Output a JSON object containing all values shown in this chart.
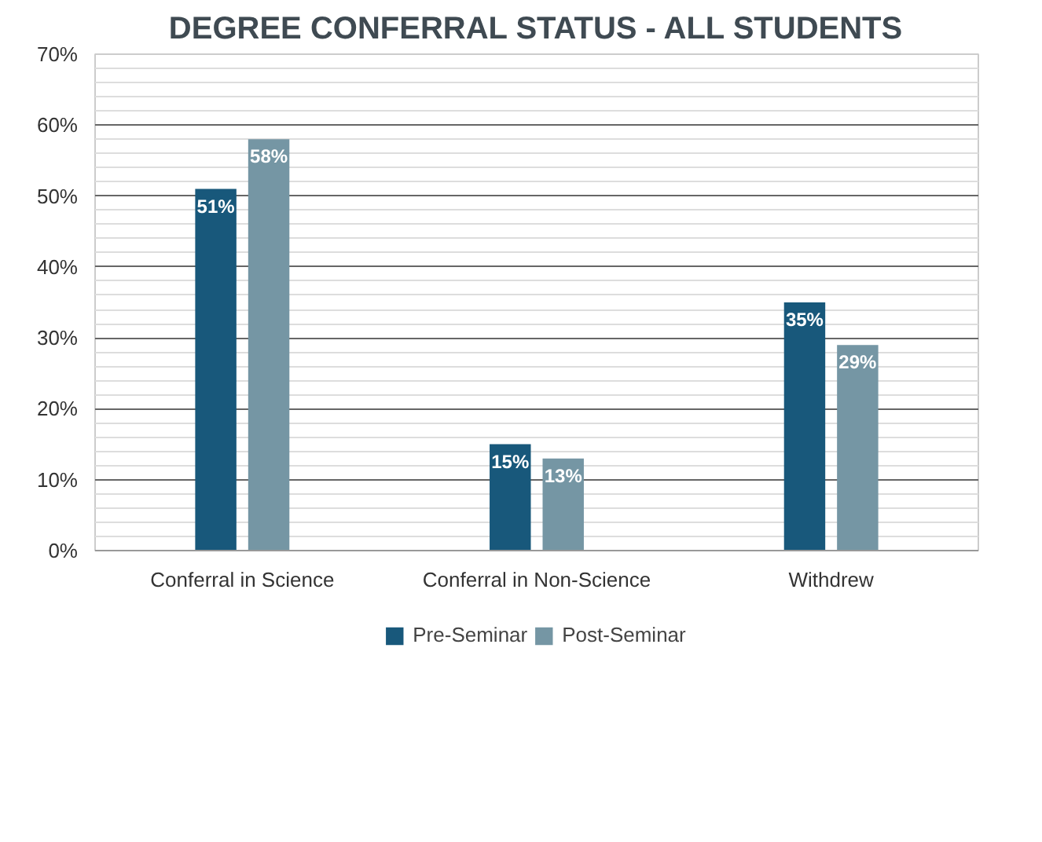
{
  "chart_data": {
    "type": "bar",
    "title": "DEGREE CONFERRAL STATUS - ALL STUDENTS",
    "categories": [
      "Conferral in Science",
      "Conferral in Non-Science",
      "Withdrew"
    ],
    "series": [
      {
        "name": "Pre-Seminar",
        "color": "#18587b",
        "values": [
          51,
          15,
          35
        ],
        "value_labels": [
          "51%",
          "15%",
          "35%"
        ]
      },
      {
        "name": "Post-Seminar",
        "color": "#7596a4",
        "values": [
          58,
          13,
          29
        ],
        "value_labels": [
          "58%",
          "13%",
          "29%"
        ]
      }
    ],
    "ylim": [
      0,
      70
    ],
    "yticks": [
      {
        "value": 0,
        "label": "0%"
      },
      {
        "value": 10,
        "label": "10%"
      },
      {
        "value": 20,
        "label": "20%"
      },
      {
        "value": 30,
        "label": "30%"
      },
      {
        "value": 40,
        "label": "40%"
      },
      {
        "value": 50,
        "label": "50%"
      },
      {
        "value": 60,
        "label": "60%"
      },
      {
        "value": 70,
        "label": "70%"
      }
    ],
    "grid": "y",
    "legend": "bottom"
  }
}
